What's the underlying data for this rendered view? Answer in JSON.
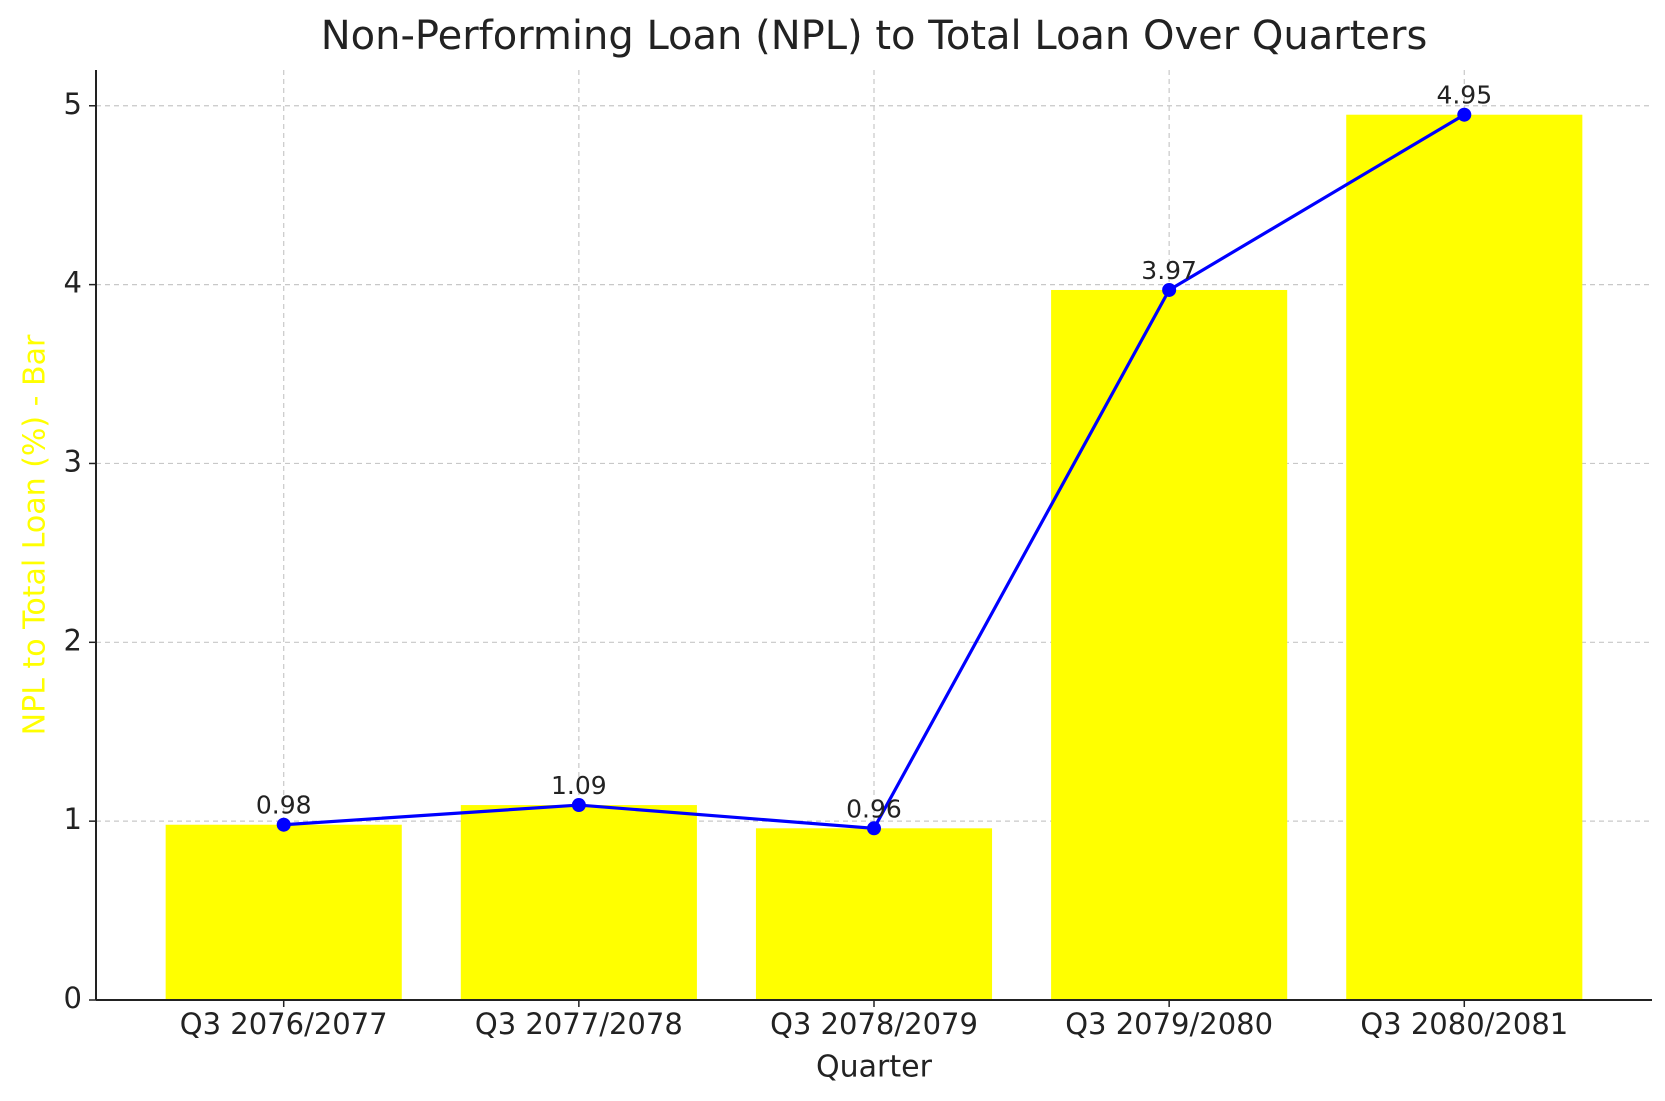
{
  "chart_data": {
    "type": "bar",
    "title": "Non-Performing Loan (NPL) to Total Loan Over Quarters",
    "xlabel": "Quarter",
    "ylabel": "NPL to Total Loan (%) - Bar",
    "categories": [
      "Q3 2076/2077",
      "Q3 2077/2078",
      "Q3 2078/2079",
      "Q3 2079/2080",
      "Q3 2080/2081"
    ],
    "series": [
      {
        "type": "bar",
        "color": "#ffff00",
        "values": [
          0.98,
          1.09,
          0.96,
          3.97,
          4.95
        ]
      },
      {
        "type": "line",
        "color": "#0000ff",
        "values": [
          0.98,
          1.09,
          0.96,
          3.97,
          4.95
        ],
        "data_labels": true
      }
    ],
    "ylim": [
      0,
      5.2
    ],
    "yticks": [
      0,
      1,
      2,
      3,
      4,
      5
    ],
    "grid": true
  }
}
